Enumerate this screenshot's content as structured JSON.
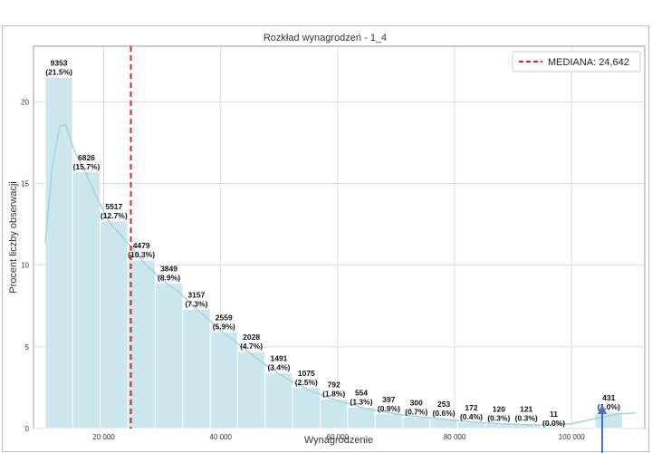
{
  "chart_data": {
    "type": "bar",
    "title": "Rozkład wynagrodzeń - 1_4",
    "xlabel": "Wynagrodzenie",
    "ylabel": "Procent liczby obserwacji",
    "xlim": [
      8000,
      112500
    ],
    "ylim": [
      0,
      23.4
    ],
    "x_ticks": [
      20000,
      40000,
      60000,
      80000,
      100000
    ],
    "x_tick_labels": [
      "20 000",
      "40 000",
      "60 000",
      "80 000",
      "100 000"
    ],
    "y_ticks": [
      0,
      5,
      10,
      15,
      20
    ],
    "grid": true,
    "bar_width": 4700,
    "bars": [
      {
        "x": 12350,
        "count": 9353,
        "percent": 21.5,
        "label_count": "9353",
        "label_pct": "(21.5%)"
      },
      {
        "x": 17050,
        "count": 6826,
        "percent": 15.7,
        "label_count": "6826",
        "label_pct": "(15.7%)"
      },
      {
        "x": 21750,
        "count": 5517,
        "percent": 12.7,
        "label_count": "5517",
        "label_pct": "(12.7%)"
      },
      {
        "x": 26450,
        "count": 4479,
        "percent": 10.3,
        "label_count": "4479",
        "label_pct": "(10.3%)"
      },
      {
        "x": 31150,
        "count": 3849,
        "percent": 8.9,
        "label_count": "3849",
        "label_pct": "(8.9%)"
      },
      {
        "x": 35850,
        "count": 3157,
        "percent": 7.3,
        "label_count": "3157",
        "label_pct": "(7.3%)"
      },
      {
        "x": 40550,
        "count": 2559,
        "percent": 5.9,
        "label_count": "2559",
        "label_pct": "(5.9%)"
      },
      {
        "x": 45250,
        "count": 2028,
        "percent": 4.7,
        "label_count": "2028",
        "label_pct": "(4.7%)"
      },
      {
        "x": 49950,
        "count": 1491,
        "percent": 3.4,
        "label_count": "1491",
        "label_pct": "(3.4%)"
      },
      {
        "x": 54650,
        "count": 1075,
        "percent": 2.5,
        "label_count": "1075",
        "label_pct": "(2.5%)"
      },
      {
        "x": 59350,
        "count": 792,
        "percent": 1.8,
        "label_count": "792",
        "label_pct": "(1.8%)"
      },
      {
        "x": 64050,
        "count": 554,
        "percent": 1.3,
        "label_count": "554",
        "label_pct": "(1.3%)"
      },
      {
        "x": 68750,
        "count": 397,
        "percent": 0.9,
        "label_count": "397",
        "label_pct": "(0.9%)"
      },
      {
        "x": 73450,
        "count": 300,
        "percent": 0.7,
        "label_count": "300",
        "label_pct": "(0.7%)"
      },
      {
        "x": 78150,
        "count": 253,
        "percent": 0.6,
        "label_count": "253",
        "label_pct": "(0.6%)"
      },
      {
        "x": 82850,
        "count": 172,
        "percent": 0.4,
        "label_count": "172",
        "label_pct": "(0.4%)"
      },
      {
        "x": 87550,
        "count": 120,
        "percent": 0.3,
        "label_count": "120",
        "label_pct": "(0.3%)"
      },
      {
        "x": 92250,
        "count": 121,
        "percent": 0.3,
        "label_count": "121",
        "label_pct": "(0.3%)"
      },
      {
        "x": 96950,
        "count": 11,
        "percent": 0.0,
        "label_count": "11",
        "label_pct": "(0.0%)"
      },
      {
        "x": 106350,
        "count": 431,
        "percent": 1.0,
        "label_count": "431",
        "label_pct": "(1.0%)"
      }
    ],
    "kde_curve": [
      [
        10000,
        11.4
      ],
      [
        11200,
        16.0
      ],
      [
        12500,
        18.5
      ],
      [
        13500,
        18.6
      ],
      [
        15000,
        17.0
      ],
      [
        17000,
        15.6
      ],
      [
        19000,
        14.0
      ],
      [
        21000,
        12.6
      ],
      [
        23000,
        11.8
      ],
      [
        25000,
        11.0
      ],
      [
        27000,
        10.1
      ],
      [
        30000,
        9.1
      ],
      [
        33000,
        8.3
      ],
      [
        36000,
        7.3
      ],
      [
        40000,
        6.0
      ],
      [
        44000,
        4.9
      ],
      [
        48000,
        3.8
      ],
      [
        52000,
        2.9
      ],
      [
        56000,
        2.2
      ],
      [
        60000,
        1.7
      ],
      [
        64000,
        1.3
      ],
      [
        68000,
        1.0
      ],
      [
        72000,
        0.8
      ],
      [
        76000,
        0.65
      ],
      [
        80000,
        0.5
      ],
      [
        84000,
        0.38
      ],
      [
        88000,
        0.3
      ],
      [
        92000,
        0.25
      ],
      [
        96000,
        0.22
      ],
      [
        100000,
        0.3
      ],
      [
        104000,
        0.6
      ],
      [
        108000,
        0.9
      ],
      [
        111000,
        0.95
      ]
    ],
    "median": {
      "value": 24642,
      "label": "MEDIANA: 24,642"
    },
    "legend_position": "top-right",
    "colors": {
      "bar_fill": "#cbe6ec",
      "bar_stroke": "#ffffff",
      "kde_line": "#a9d2de",
      "median_line": "#e02020",
      "grid": "#dddddd",
      "frame": "#999999",
      "arrow": "#4472c4"
    }
  }
}
